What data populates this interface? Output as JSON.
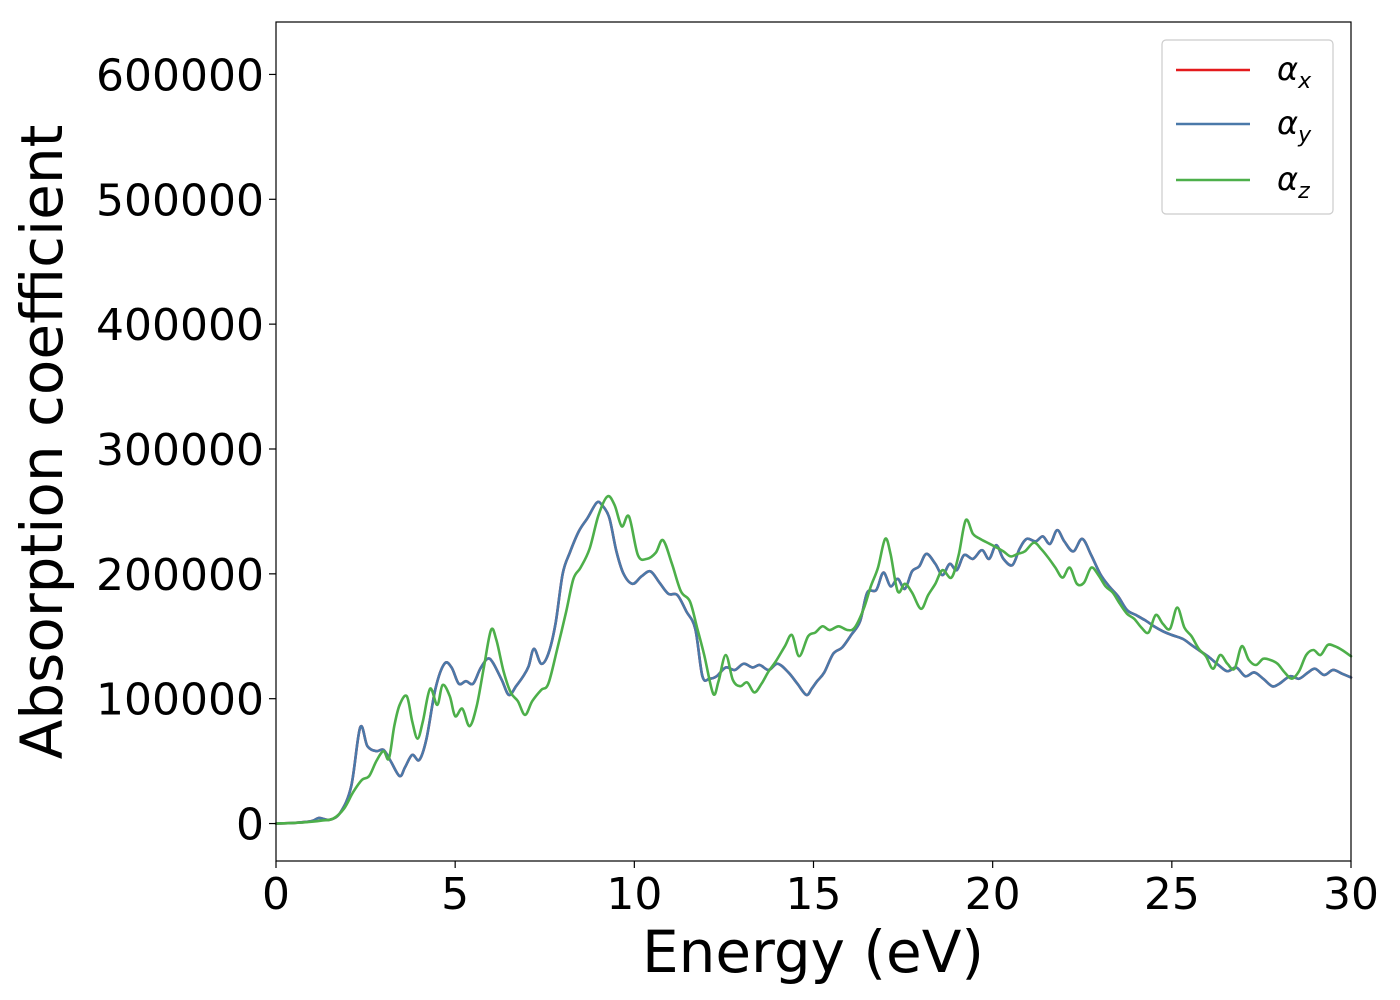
{
  "chart_data": {
    "type": "line",
    "xlabel": "Energy (eV)",
    "ylabel": "Absorption coefficient",
    "xlim": [
      0,
      30
    ],
    "ylim": [
      -30000,
      642000
    ],
    "xticks": [
      0,
      5,
      10,
      15,
      20,
      25,
      30
    ],
    "yticks": [
      0,
      100000,
      200000,
      300000,
      400000,
      500000,
      600000
    ],
    "grid": false,
    "legend_position": "top-right",
    "series": [
      {
        "name": "α_x",
        "symbol": "α",
        "sub": "x",
        "color": "#e41a1c",
        "x": [
          0,
          0.5,
          1.0,
          1.2,
          1.5,
          1.8,
          2.1,
          2.35,
          2.55,
          2.8,
          3.0,
          3.2,
          3.45,
          3.6,
          3.8,
          4.0,
          4.2,
          4.45,
          4.7,
          4.9,
          5.1,
          5.3,
          5.5,
          5.7,
          5.9,
          6.05,
          6.3,
          6.5,
          6.7,
          6.9,
          7.05,
          7.2,
          7.4,
          7.6,
          7.8,
          8.0,
          8.2,
          8.45,
          8.7,
          8.95,
          9.1,
          9.3,
          9.5,
          9.7,
          9.95,
          10.2,
          10.45,
          10.7,
          10.95,
          11.2,
          11.45,
          11.7,
          11.9,
          12.1,
          12.3,
          12.55,
          12.8,
          13.05,
          13.3,
          13.5,
          13.75,
          14.0,
          14.3,
          14.55,
          14.8,
          14.95,
          15.1,
          15.3,
          15.55,
          15.8,
          16.05,
          16.3,
          16.5,
          16.75,
          16.95,
          17.15,
          17.35,
          17.55,
          17.75,
          17.95,
          18.15,
          18.4,
          18.6,
          18.8,
          19.0,
          19.2,
          19.45,
          19.7,
          19.9,
          20.1,
          20.3,
          20.55,
          20.75,
          20.95,
          21.2,
          21.4,
          21.6,
          21.8,
          22.0,
          22.25,
          22.5,
          22.75,
          23.0,
          23.25,
          23.5,
          23.75,
          24.0,
          24.3,
          24.5,
          24.75,
          25.0,
          25.3,
          25.55,
          25.8,
          26.05,
          26.3,
          26.55,
          26.8,
          27.05,
          27.3,
          27.55,
          27.8,
          28.0,
          28.3,
          28.55,
          28.8,
          29.0,
          29.25,
          29.5,
          29.75,
          30.0
        ],
        "y": [
          0,
          500,
          2000,
          4500,
          3000,
          9000,
          30000,
          77000,
          62000,
          58000,
          59000,
          50000,
          38000,
          45000,
          55000,
          51000,
          68000,
          108000,
          128000,
          125000,
          112000,
          114000,
          112000,
          124000,
          132000,
          129000,
          115000,
          103000,
          110000,
          118000,
          126000,
          140000,
          128000,
          136000,
          160000,
          200000,
          217000,
          234000,
          245000,
          257000,
          255000,
          245000,
          218000,
          200000,
          192000,
          198000,
          202000,
          193000,
          184000,
          183000,
          170000,
          156000,
          118000,
          116000,
          118000,
          125000,
          123000,
          128000,
          125000,
          127000,
          123000,
          128000,
          121000,
          112000,
          103000,
          108000,
          114000,
          121000,
          136000,
          141000,
          151000,
          162000,
          185000,
          187000,
          201000,
          190000,
          196000,
          188000,
          202000,
          206000,
          216000,
          208000,
          199000,
          208000,
          203000,
          215000,
          212000,
          219000,
          212000,
          223000,
          212000,
          207000,
          220000,
          228000,
          226000,
          230000,
          224000,
          235000,
          226000,
          218000,
          228000,
          215000,
          200000,
          190000,
          182000,
          171000,
          167000,
          162000,
          158000,
          154000,
          151000,
          148000,
          143000,
          138000,
          133000,
          127000,
          122000,
          125000,
          118000,
          121000,
          116000,
          110000,
          112000,
          118000,
          116000,
          121000,
          124000,
          119000,
          123000,
          120000,
          117000
        ]
      },
      {
        "name": "α_y",
        "symbol": "α",
        "sub": "y",
        "color": "#4a79a9",
        "x": [
          0,
          0.5,
          1.0,
          1.2,
          1.5,
          1.8,
          2.1,
          2.35,
          2.55,
          2.8,
          3.0,
          3.2,
          3.45,
          3.6,
          3.8,
          4.0,
          4.2,
          4.45,
          4.7,
          4.9,
          5.1,
          5.3,
          5.5,
          5.7,
          5.9,
          6.05,
          6.3,
          6.5,
          6.7,
          6.9,
          7.05,
          7.2,
          7.4,
          7.6,
          7.8,
          8.0,
          8.2,
          8.45,
          8.7,
          8.95,
          9.1,
          9.3,
          9.5,
          9.7,
          9.95,
          10.2,
          10.45,
          10.7,
          10.95,
          11.2,
          11.45,
          11.7,
          11.9,
          12.1,
          12.3,
          12.55,
          12.8,
          13.05,
          13.3,
          13.5,
          13.75,
          14.0,
          14.3,
          14.55,
          14.8,
          14.95,
          15.1,
          15.3,
          15.55,
          15.8,
          16.05,
          16.3,
          16.5,
          16.75,
          16.95,
          17.15,
          17.35,
          17.55,
          17.75,
          17.95,
          18.15,
          18.4,
          18.6,
          18.8,
          19.0,
          19.2,
          19.45,
          19.7,
          19.9,
          20.1,
          20.3,
          20.55,
          20.75,
          20.95,
          21.2,
          21.4,
          21.6,
          21.8,
          22.0,
          22.25,
          22.5,
          22.75,
          23.0,
          23.25,
          23.5,
          23.75,
          24.0,
          24.3,
          24.5,
          24.75,
          25.0,
          25.3,
          25.55,
          25.8,
          26.05,
          26.3,
          26.55,
          26.8,
          27.05,
          27.3,
          27.55,
          27.8,
          28.0,
          28.3,
          28.55,
          28.8,
          29.0,
          29.25,
          29.5,
          29.75,
          30.0
        ],
        "y": [
          0,
          500,
          2000,
          4500,
          3000,
          9000,
          30000,
          77000,
          62000,
          58000,
          59000,
          50000,
          38000,
          45000,
          55000,
          51000,
          68000,
          108000,
          128000,
          125000,
          112000,
          114000,
          112000,
          124000,
          132000,
          129000,
          115000,
          103000,
          110000,
          118000,
          126000,
          140000,
          128000,
          136000,
          160000,
          200000,
          217000,
          234000,
          245000,
          257000,
          255000,
          245000,
          218000,
          200000,
          192000,
          198000,
          202000,
          193000,
          184000,
          183000,
          170000,
          156000,
          118000,
          116000,
          118000,
          125000,
          123000,
          128000,
          125000,
          127000,
          123000,
          128000,
          121000,
          112000,
          103000,
          108000,
          114000,
          121000,
          136000,
          141000,
          151000,
          162000,
          185000,
          187000,
          201000,
          190000,
          196000,
          188000,
          202000,
          206000,
          216000,
          208000,
          199000,
          208000,
          203000,
          215000,
          212000,
          219000,
          212000,
          223000,
          212000,
          207000,
          220000,
          228000,
          226000,
          230000,
          224000,
          235000,
          226000,
          218000,
          228000,
          215000,
          200000,
          190000,
          182000,
          171000,
          167000,
          162000,
          158000,
          154000,
          151000,
          148000,
          143000,
          138000,
          133000,
          127000,
          122000,
          125000,
          118000,
          121000,
          116000,
          110000,
          112000,
          118000,
          116000,
          121000,
          124000,
          119000,
          123000,
          120000,
          117000
        ]
      },
      {
        "name": "α_z",
        "symbol": "α",
        "sub": "z",
        "color": "#4daf4a",
        "x": [
          0,
          0.5,
          1.0,
          1.3,
          1.6,
          1.9,
          2.15,
          2.4,
          2.6,
          2.8,
          3.0,
          3.15,
          3.3,
          3.45,
          3.65,
          3.8,
          3.95,
          4.1,
          4.3,
          4.5,
          4.65,
          4.85,
          5.0,
          5.2,
          5.4,
          5.6,
          5.8,
          6.0,
          6.15,
          6.35,
          6.55,
          6.75,
          6.95,
          7.15,
          7.4,
          7.6,
          7.85,
          8.1,
          8.3,
          8.5,
          8.75,
          9.0,
          9.25,
          9.45,
          9.65,
          9.85,
          10.1,
          10.35,
          10.6,
          10.8,
          11.05,
          11.3,
          11.55,
          11.75,
          11.95,
          12.2,
          12.35,
          12.55,
          12.75,
          12.95,
          13.15,
          13.35,
          13.55,
          13.75,
          13.95,
          14.2,
          14.4,
          14.6,
          14.85,
          15.05,
          15.25,
          15.45,
          15.7,
          15.95,
          16.15,
          16.4,
          16.6,
          16.8,
          17.0,
          17.15,
          17.35,
          17.55,
          17.75,
          18.0,
          18.2,
          18.4,
          18.6,
          18.85,
          19.05,
          19.25,
          19.45,
          19.65,
          19.85,
          20.05,
          20.3,
          20.5,
          20.7,
          20.9,
          21.15,
          21.35,
          21.55,
          21.75,
          21.95,
          22.15,
          22.35,
          22.55,
          22.75,
          22.95,
          23.15,
          23.35,
          23.55,
          23.75,
          23.95,
          24.15,
          24.35,
          24.55,
          24.75,
          24.95,
          25.15,
          25.35,
          25.55,
          25.75,
          25.95,
          26.15,
          26.35,
          26.55,
          26.75,
          26.95,
          27.15,
          27.35,
          27.55,
          27.75,
          27.95,
          28.15,
          28.35,
          28.55,
          28.75,
          28.95,
          29.15,
          29.35,
          29.55,
          29.75,
          30.0
        ],
        "y": [
          0,
          500,
          1500,
          2500,
          4000,
          12000,
          25000,
          35000,
          38000,
          50000,
          58000,
          52000,
          78000,
          95000,
          102000,
          82000,
          68000,
          82000,
          108000,
          95000,
          111000,
          102000,
          86000,
          92000,
          78000,
          94000,
          125000,
          155000,
          147000,
          122000,
          105000,
          98000,
          87000,
          98000,
          107000,
          112000,
          140000,
          170000,
          196000,
          205000,
          220000,
          247000,
          262000,
          255000,
          238000,
          246000,
          215000,
          212000,
          217000,
          227000,
          208000,
          186000,
          178000,
          157000,
          135000,
          104000,
          114000,
          135000,
          115000,
          110000,
          113000,
          105000,
          112000,
          122000,
          130000,
          142000,
          151000,
          134000,
          150000,
          153000,
          158000,
          155000,
          158000,
          155000,
          157000,
          172000,
          190000,
          205000,
          228000,
          216000,
          186000,
          192000,
          185000,
          172000,
          183000,
          192000,
          203000,
          197000,
          215000,
          243000,
          232000,
          228000,
          225000,
          222000,
          218000,
          214000,
          216000,
          218000,
          225000,
          220000,
          213000,
          205000,
          197000,
          205000,
          192000,
          193000,
          205000,
          199000,
          190000,
          185000,
          176000,
          168000,
          164000,
          157000,
          153000,
          167000,
          160000,
          156000,
          173000,
          157000,
          150000,
          140000,
          134000,
          124000,
          135000,
          128000,
          124000,
          142000,
          131000,
          127000,
          132000,
          131000,
          128000,
          121000,
          116000,
          122000,
          135000,
          139000,
          135000,
          143000,
          142000,
          139000,
          134000
        ]
      }
    ]
  }
}
